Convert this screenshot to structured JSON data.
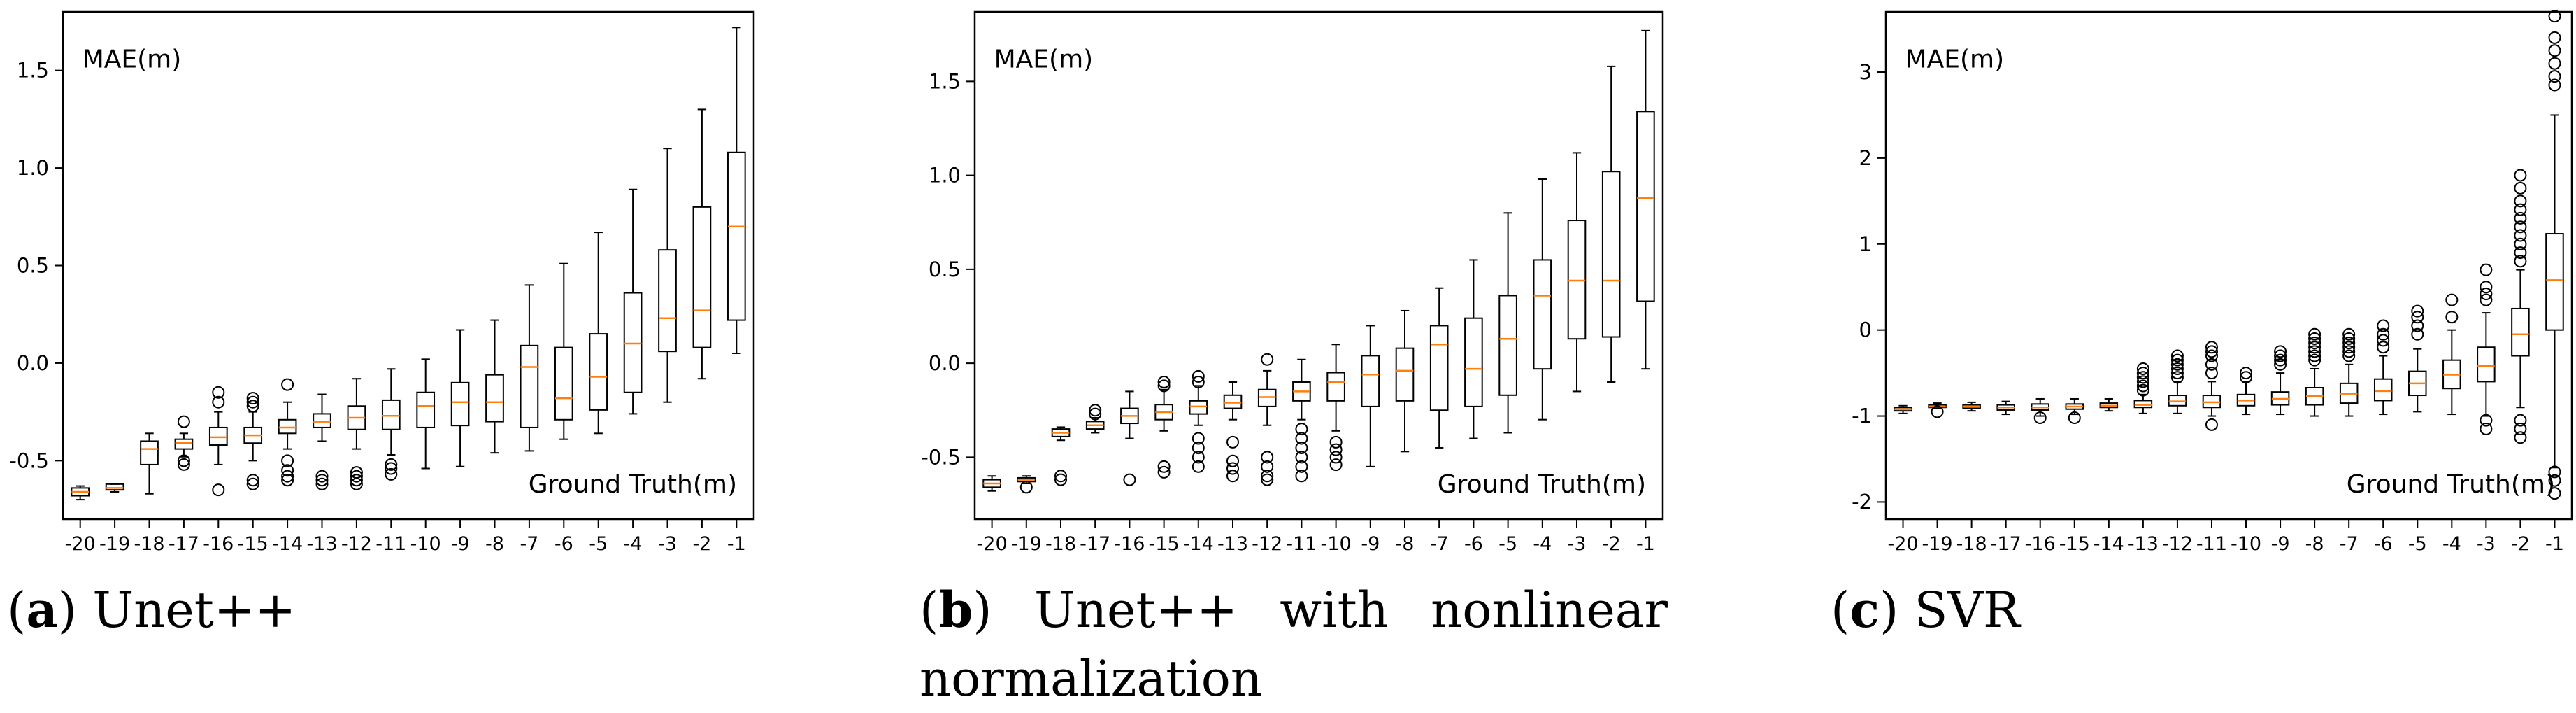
{
  "categories": [
    "-20",
    "-19",
    "-18",
    "-17",
    "-16",
    "-15",
    "-14",
    "-13",
    "-12",
    "-11",
    "-10",
    "-9",
    "-8",
    "-7",
    "-6",
    "-5",
    "-4",
    "-3",
    "-2",
    "-1"
  ],
  "colors": {
    "median": "#ff7f0e",
    "box": "#000000",
    "frame": "#000000"
  },
  "chart_data": [
    {
      "type": "box",
      "title": "MAE(m)",
      "xlabel": "Ground Truth(m)",
      "ylabel": "MAE(m)",
      "ylim": [
        -0.8,
        1.8
      ],
      "yticks": [
        -0.5,
        0.0,
        0.5,
        1.0,
        1.5
      ],
      "ytick_labels": [
        "-0.5",
        "0.0",
        "0.5",
        "1.0",
        "1.5"
      ],
      "boxes": [
        {
          "q1": -0.68,
          "median": -0.66,
          "q3": -0.64,
          "wlo": -0.7,
          "whi": -0.63,
          "fliers": []
        },
        {
          "q1": -0.65,
          "median": -0.64,
          "q3": -0.62,
          "wlo": -0.66,
          "whi": -0.62,
          "fliers": []
        },
        {
          "q1": -0.52,
          "median": -0.44,
          "q3": -0.4,
          "wlo": -0.67,
          "whi": -0.36,
          "fliers": []
        },
        {
          "q1": -0.44,
          "median": -0.41,
          "q3": -0.39,
          "wlo": -0.48,
          "whi": -0.36,
          "fliers": [
            -0.3,
            -0.5,
            -0.52
          ]
        },
        {
          "q1": -0.42,
          "median": -0.38,
          "q3": -0.33,
          "wlo": -0.52,
          "whi": -0.25,
          "fliers": [
            -0.15,
            -0.2,
            -0.65
          ]
        },
        {
          "q1": -0.41,
          "median": -0.37,
          "q3": -0.33,
          "wlo": -0.5,
          "whi": -0.25,
          "fliers": [
            -0.18,
            -0.2,
            -0.22,
            -0.6,
            -0.62
          ]
        },
        {
          "q1": -0.36,
          "median": -0.33,
          "q3": -0.29,
          "wlo": -0.44,
          "whi": -0.2,
          "fliers": [
            -0.11,
            -0.5,
            -0.55,
            -0.58,
            -0.6
          ]
        },
        {
          "q1": -0.33,
          "median": -0.3,
          "q3": -0.26,
          "wlo": -0.4,
          "whi": -0.16,
          "fliers": [
            -0.58,
            -0.6,
            -0.62
          ]
        },
        {
          "q1": -0.34,
          "median": -0.28,
          "q3": -0.22,
          "wlo": -0.44,
          "whi": -0.08,
          "fliers": [
            -0.56,
            -0.58,
            -0.6,
            -0.62
          ]
        },
        {
          "q1": -0.34,
          "median": -0.27,
          "q3": -0.19,
          "wlo": -0.47,
          "whi": -0.03,
          "fliers": [
            -0.52,
            -0.54,
            -0.57
          ]
        },
        {
          "q1": -0.33,
          "median": -0.22,
          "q3": -0.15,
          "wlo": -0.54,
          "whi": 0.02,
          "fliers": []
        },
        {
          "q1": -0.32,
          "median": -0.2,
          "q3": -0.1,
          "wlo": -0.53,
          "whi": 0.17,
          "fliers": []
        },
        {
          "q1": -0.3,
          "median": -0.2,
          "q3": -0.06,
          "wlo": -0.46,
          "whi": 0.22,
          "fliers": []
        },
        {
          "q1": -0.33,
          "median": -0.02,
          "q3": 0.09,
          "wlo": -0.45,
          "whi": 0.4,
          "fliers": []
        },
        {
          "q1": -0.29,
          "median": -0.18,
          "q3": 0.08,
          "wlo": -0.39,
          "whi": 0.51,
          "fliers": []
        },
        {
          "q1": -0.24,
          "median": -0.07,
          "q3": 0.15,
          "wlo": -0.36,
          "whi": 0.67,
          "fliers": []
        },
        {
          "q1": -0.15,
          "median": 0.1,
          "q3": 0.36,
          "wlo": -0.26,
          "whi": 0.89,
          "fliers": []
        },
        {
          "q1": 0.06,
          "median": 0.23,
          "q3": 0.58,
          "wlo": -0.2,
          "whi": 1.1,
          "fliers": []
        },
        {
          "q1": 0.08,
          "median": 0.27,
          "q3": 0.8,
          "wlo": -0.08,
          "whi": 1.3,
          "fliers": []
        },
        {
          "q1": 0.22,
          "median": 0.7,
          "q3": 1.08,
          "wlo": 0.05,
          "whi": 1.72,
          "fliers": []
        }
      ]
    },
    {
      "type": "box",
      "title": "MAE(m)",
      "xlabel": "Ground Truth(m)",
      "ylabel": "MAE(m)",
      "ylim": [
        -0.83,
        1.87
      ],
      "yticks": [
        -0.5,
        0.0,
        0.5,
        1.0,
        1.5
      ],
      "ytick_labels": [
        "-0.5",
        "0.0",
        "0.5",
        "1.0",
        "1.5"
      ],
      "boxes": [
        {
          "q1": -0.66,
          "median": -0.64,
          "q3": -0.62,
          "wlo": -0.68,
          "whi": -0.6,
          "fliers": []
        },
        {
          "q1": -0.63,
          "median": -0.62,
          "q3": -0.61,
          "wlo": -0.64,
          "whi": -0.6,
          "fliers": [
            -0.66
          ]
        },
        {
          "q1": -0.39,
          "median": -0.37,
          "q3": -0.35,
          "wlo": -0.41,
          "whi": -0.34,
          "fliers": [
            -0.6,
            -0.62
          ]
        },
        {
          "q1": -0.35,
          "median": -0.33,
          "q3": -0.31,
          "wlo": -0.37,
          "whi": -0.29,
          "fliers": [
            -0.25,
            -0.27
          ]
        },
        {
          "q1": -0.32,
          "median": -0.28,
          "q3": -0.24,
          "wlo": -0.4,
          "whi": -0.15,
          "fliers": [
            -0.62
          ]
        },
        {
          "q1": -0.3,
          "median": -0.26,
          "q3": -0.22,
          "wlo": -0.36,
          "whi": -0.14,
          "fliers": [
            -0.1,
            -0.12,
            -0.55,
            -0.58
          ]
        },
        {
          "q1": -0.27,
          "median": -0.23,
          "q3": -0.2,
          "wlo": -0.33,
          "whi": -0.12,
          "fliers": [
            -0.07,
            -0.1,
            -0.4,
            -0.45,
            -0.5,
            -0.55
          ]
        },
        {
          "q1": -0.24,
          "median": -0.21,
          "q3": -0.17,
          "wlo": -0.3,
          "whi": -0.1,
          "fliers": [
            -0.42,
            -0.52,
            -0.56,
            -0.6
          ]
        },
        {
          "q1": -0.23,
          "median": -0.18,
          "q3": -0.14,
          "wlo": -0.33,
          "whi": -0.04,
          "fliers": [
            0.02,
            -0.5,
            -0.55,
            -0.6,
            -0.62
          ]
        },
        {
          "q1": -0.2,
          "median": -0.15,
          "q3": -0.1,
          "wlo": -0.3,
          "whi": 0.02,
          "fliers": [
            -0.35,
            -0.4,
            -0.45,
            -0.5,
            -0.55,
            -0.6
          ]
        },
        {
          "q1": -0.2,
          "median": -0.1,
          "q3": -0.05,
          "wlo": -0.36,
          "whi": 0.1,
          "fliers": [
            -0.42,
            -0.46,
            -0.5,
            -0.54
          ]
        },
        {
          "q1": -0.23,
          "median": -0.06,
          "q3": 0.04,
          "wlo": -0.55,
          "whi": 0.2,
          "fliers": []
        },
        {
          "q1": -0.2,
          "median": -0.04,
          "q3": 0.08,
          "wlo": -0.47,
          "whi": 0.28,
          "fliers": []
        },
        {
          "q1": -0.25,
          "median": 0.1,
          "q3": 0.2,
          "wlo": -0.45,
          "whi": 0.4,
          "fliers": []
        },
        {
          "q1": -0.23,
          "median": -0.03,
          "q3": 0.24,
          "wlo": -0.4,
          "whi": 0.55,
          "fliers": []
        },
        {
          "q1": -0.17,
          "median": 0.13,
          "q3": 0.36,
          "wlo": -0.37,
          "whi": 0.8,
          "fliers": []
        },
        {
          "q1": -0.03,
          "median": 0.36,
          "q3": 0.55,
          "wlo": -0.3,
          "whi": 0.98,
          "fliers": []
        },
        {
          "q1": 0.13,
          "median": 0.44,
          "q3": 0.76,
          "wlo": -0.15,
          "whi": 1.12,
          "fliers": []
        },
        {
          "q1": 0.14,
          "median": 0.44,
          "q3": 1.02,
          "wlo": -0.1,
          "whi": 1.58,
          "fliers": []
        },
        {
          "q1": 0.33,
          "median": 0.88,
          "q3": 1.34,
          "wlo": -0.03,
          "whi": 1.77,
          "fliers": []
        }
      ]
    },
    {
      "type": "box",
      "title": "MAE(m)",
      "xlabel": "Ground Truth(m)",
      "ylabel": "MAE(m)",
      "ylim": [
        -2.2,
        3.7
      ],
      "yticks": [
        -2,
        -1,
        0,
        1,
        2,
        3
      ],
      "ytick_labels": [
        "-2",
        "-1",
        "0",
        "1",
        "2",
        "3"
      ],
      "boxes": [
        {
          "q1": -0.94,
          "median": -0.92,
          "q3": -0.9,
          "wlo": -0.97,
          "whi": -0.88,
          "fliers": []
        },
        {
          "q1": -0.9,
          "median": -0.89,
          "q3": -0.87,
          "wlo": -0.91,
          "whi": -0.85,
          "fliers": [
            -0.95
          ]
        },
        {
          "q1": -0.91,
          "median": -0.89,
          "q3": -0.87,
          "wlo": -0.94,
          "whi": -0.84,
          "fliers": []
        },
        {
          "q1": -0.93,
          "median": -0.9,
          "q3": -0.87,
          "wlo": -0.98,
          "whi": -0.83,
          "fliers": []
        },
        {
          "q1": -0.93,
          "median": -0.9,
          "q3": -0.86,
          "wlo": -1.0,
          "whi": -0.8,
          "fliers": [
            -1.02
          ]
        },
        {
          "q1": -0.92,
          "median": -0.89,
          "q3": -0.86,
          "wlo": -0.98,
          "whi": -0.8,
          "fliers": [
            -1.02
          ]
        },
        {
          "q1": -0.9,
          "median": -0.88,
          "q3": -0.85,
          "wlo": -0.94,
          "whi": -0.8,
          "fliers": []
        },
        {
          "q1": -0.9,
          "median": -0.87,
          "q3": -0.82,
          "wlo": -0.97,
          "whi": -0.75,
          "fliers": [
            -0.45,
            -0.5,
            -0.55,
            -0.6,
            -0.65,
            -0.7
          ]
        },
        {
          "q1": -0.88,
          "median": -0.83,
          "q3": -0.76,
          "wlo": -0.97,
          "whi": -0.6,
          "fliers": [
            -0.3,
            -0.35,
            -0.4,
            -0.45,
            -0.5,
            -0.55
          ]
        },
        {
          "q1": -0.9,
          "median": -0.84,
          "q3": -0.76,
          "wlo": -1.0,
          "whi": -0.6,
          "fliers": [
            -0.2,
            -0.25,
            -0.3,
            -0.4,
            -0.5,
            -1.1
          ]
        },
        {
          "q1": -0.88,
          "median": -0.82,
          "q3": -0.75,
          "wlo": -0.98,
          "whi": -0.6,
          "fliers": [
            -0.5,
            -0.55
          ]
        },
        {
          "q1": -0.87,
          "median": -0.8,
          "q3": -0.72,
          "wlo": -0.98,
          "whi": -0.5,
          "fliers": [
            -0.25,
            -0.3,
            -0.35,
            -0.4
          ]
        },
        {
          "q1": -0.87,
          "median": -0.77,
          "q3": -0.67,
          "wlo": -1.0,
          "whi": -0.45,
          "fliers": [
            -0.05,
            -0.1,
            -0.15,
            -0.2,
            -0.25,
            -0.3,
            -0.35
          ]
        },
        {
          "q1": -0.85,
          "median": -0.74,
          "q3": -0.62,
          "wlo": -1.0,
          "whi": -0.4,
          "fliers": [
            -0.05,
            -0.1,
            -0.15,
            -0.2,
            -0.25,
            -0.3
          ]
        },
        {
          "q1": -0.82,
          "median": -0.71,
          "q3": -0.57,
          "wlo": -0.98,
          "whi": -0.3,
          "fliers": [
            0.05,
            -0.05,
            -0.12,
            -0.2
          ]
        },
        {
          "q1": -0.76,
          "median": -0.62,
          "q3": -0.48,
          "wlo": -0.95,
          "whi": -0.22,
          "fliers": [
            0.22,
            0.15,
            0.05,
            -0.05
          ]
        },
        {
          "q1": -0.68,
          "median": -0.52,
          "q3": -0.35,
          "wlo": -0.98,
          "whi": 0.0,
          "fliers": [
            0.35,
            0.15
          ]
        },
        {
          "q1": -0.6,
          "median": -0.42,
          "q3": -0.2,
          "wlo": -1.0,
          "whi": 0.2,
          "fliers": [
            0.7,
            0.5,
            0.42,
            0.35,
            -1.05,
            -1.15
          ]
        },
        {
          "q1": -0.3,
          "median": -0.05,
          "q3": 0.25,
          "wlo": -0.9,
          "whi": 0.7,
          "fliers": [
            1.8,
            1.65,
            1.5,
            1.4,
            1.3,
            1.2,
            1.1,
            1.0,
            0.9,
            0.8,
            -1.05,
            -1.15,
            -1.25
          ]
        },
        {
          "q1": 0.0,
          "median": 0.58,
          "q3": 1.12,
          "wlo": -1.6,
          "whi": 2.5,
          "fliers": [
            3.65,
            3.4,
            3.25,
            3.1,
            2.95,
            2.85,
            -1.65,
            -1.75,
            -1.9
          ]
        }
      ]
    }
  ],
  "captions": [
    {
      "letter": "a",
      "text": "Unet++"
    },
    {
      "letter": "b",
      "words": [
        "Unet++",
        "with",
        "nonlinear"
      ],
      "line2": "normalization"
    },
    {
      "letter": "c",
      "text": "SVR"
    }
  ]
}
